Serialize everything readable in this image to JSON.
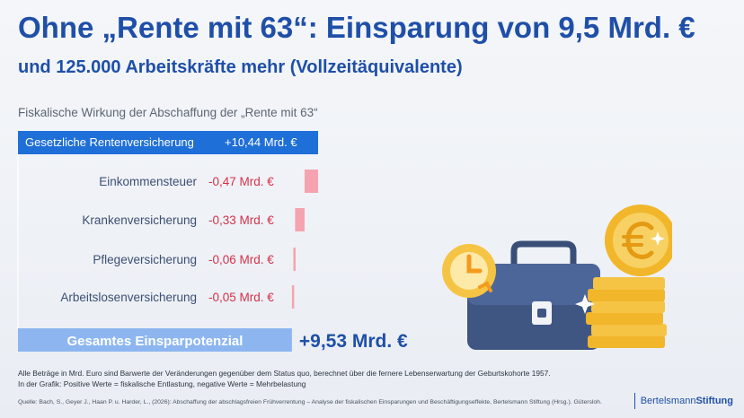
{
  "header": {
    "title": "Ohne „Rente mit 63“: Einsparung von 9,5 Mrd. €",
    "subtitle": "und 125.000 Arbeitskräfte mehr (Vollzeitäquivalente)"
  },
  "chart_data": {
    "type": "bar",
    "title": "Fiskalische Wirkung der Abschaffung der „Rente mit 63“",
    "categories": [
      "Gesetzliche Rentenversicherung",
      "Einkommensteuer",
      "Krankenversicherung",
      "Pflegeversicherung",
      "Arbeitslosenversicherung"
    ],
    "values": [
      10.44,
      -0.47,
      -0.33,
      -0.06,
      -0.05
    ],
    "value_labels": [
      "+10,44 Mrd. €",
      "-0,47 Mrd. €",
      "-0,33 Mrd. €",
      "-0,06 Mrd. €",
      "-0,05 Mrd. €"
    ],
    "total": {
      "label": "Gesamtes Einsparpotenzial",
      "value": 9.53,
      "value_label": "+9,53 Mrd. €"
    },
    "colors": {
      "positive": "#1f6fd8",
      "negative": "#f5a3b0",
      "total": "#8db6f0",
      "negative_text": "#d3314a",
      "category_text": "#3c4f74",
      "total_value_text": "#1f4fa8"
    }
  },
  "notes": [
    "Alle Beträge in Mrd. Euro sind Barwerte der Veränderungen gegenüber dem Status quo, berechnet über die fernere Lebenserwartung der Geburtskohorte 1957.",
    "In der Grafik: Positive Werte = fiskalische Entlastung, negative Werte = Mehrbelastung"
  ],
  "source": "Quelle: Bach, S., Geyer J., Haan P. u. Harder, L., (2026): Abschaffung der abschlagsfreien Frühverrentung – Analyse der fiskalischen Einsparungen und Beschäftigungseffekte, Bertelsmann Stiftung (Hrsg.). Gütersloh.",
  "brand": {
    "part1": "Bertelsmann",
    "part2": "Stiftung"
  },
  "illustration": {
    "icons": [
      "clock-icon",
      "briefcase-icon",
      "euro-coin-icon",
      "coin-stack-icon",
      "sparkle-icon"
    ]
  }
}
